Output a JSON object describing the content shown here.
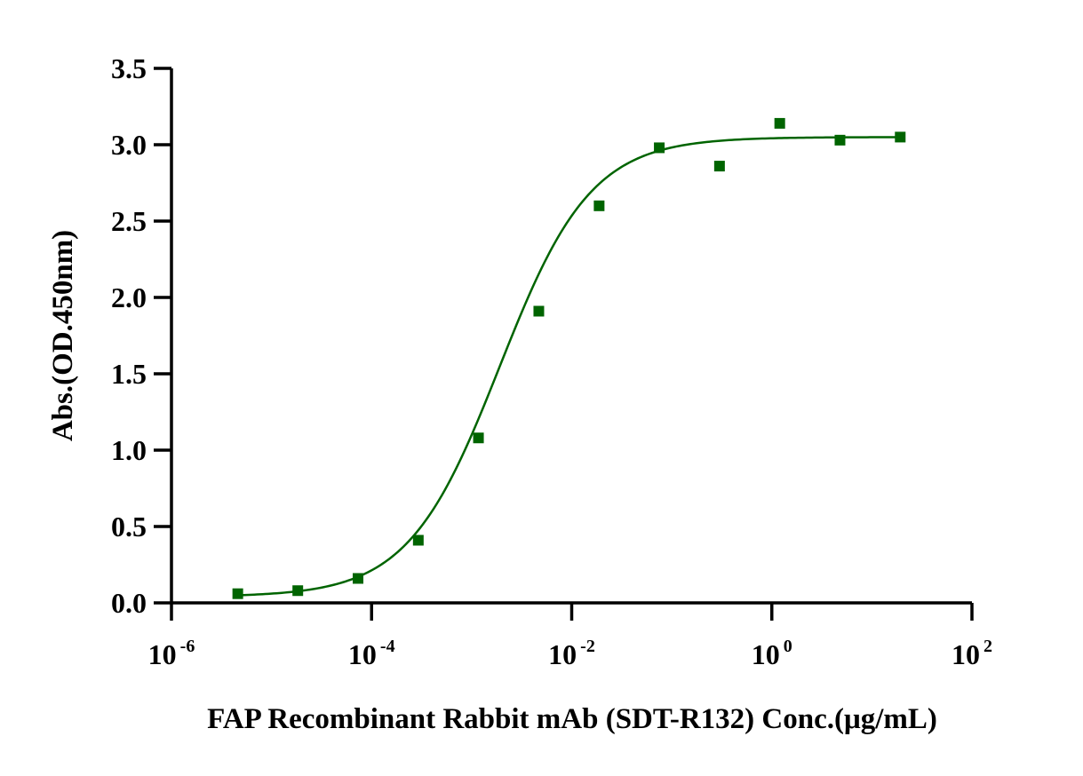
{
  "chart_data": {
    "type": "scatter",
    "title": "",
    "xlabel": "FAP Recombinant Rabbit mAb (SDT-R132) Conc.(μg/mL)",
    "ylabel": "Abs.(OD.450nm)",
    "x_scale": "log10",
    "xlim": [
      1e-06,
      100
    ],
    "ylim": [
      0,
      3.5
    ],
    "x_ticks": [
      {
        "base": "10",
        "exp": "-6",
        "value": 1e-06
      },
      {
        "base": "10",
        "exp": "-4",
        "value": 0.0001
      },
      {
        "base": "10",
        "exp": "-2",
        "value": 0.01
      },
      {
        "base": "10",
        "exp": "0",
        "value": 1
      },
      {
        "base": "10",
        "exp": "2",
        "value": 100
      }
    ],
    "y_ticks": [
      "0.0",
      "0.5",
      "1.0",
      "1.5",
      "2.0",
      "2.5",
      "3.0",
      "3.5"
    ],
    "grid": false,
    "legend": "none",
    "series": [
      {
        "color": "#006400",
        "marker": "square",
        "x": [
          4.6e-06,
          1.83e-05,
          7.32e-05,
          0.000293,
          0.00117,
          0.00469,
          0.0188,
          0.075,
          0.3,
          1.2,
          4.8,
          19.2
        ],
        "y": [
          0.06,
          0.08,
          0.16,
          0.41,
          1.08,
          1.91,
          2.6,
          2.98,
          2.86,
          3.14,
          3.03,
          3.05
        ]
      }
    ],
    "fit_curve": {
      "model": "4PL",
      "color": "#006400",
      "bottom": 0.04,
      "top": 3.05,
      "ec50": 0.0019,
      "hill": 0.95
    }
  }
}
